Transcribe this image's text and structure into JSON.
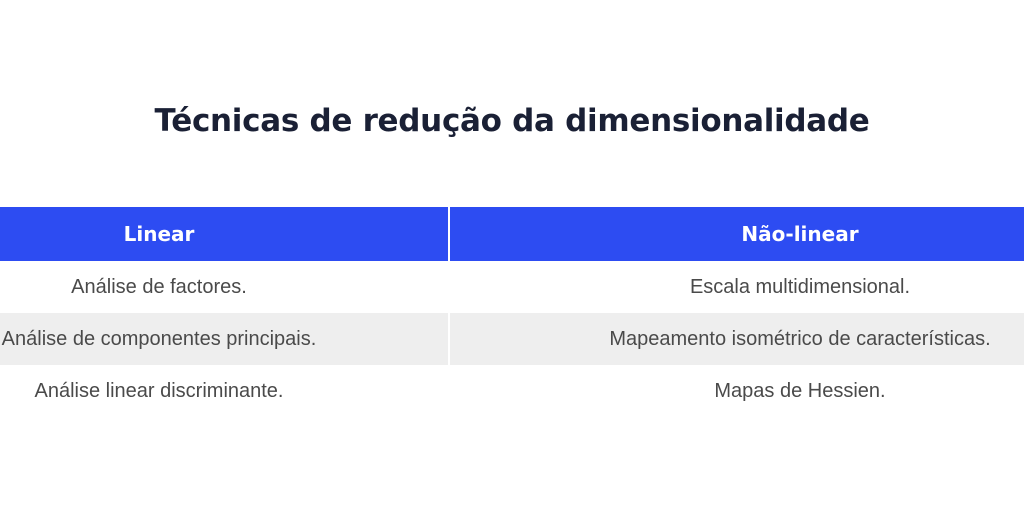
{
  "title": "Técnicas de redução da dimensionalidade",
  "table": {
    "headers": [
      "Linear",
      "Não-linear"
    ],
    "rows": [
      [
        "Análise de factores.",
        "Escala multidimensional."
      ],
      [
        "Análise de componentes principais.",
        "Mapeamento isométrico de características."
      ],
      [
        "Análise linear discriminante.",
        "Mapas de Hessien."
      ]
    ]
  },
  "colors": {
    "header_bg": "#2d4cf2",
    "title": "#1a2035",
    "cell_text": "#4a4a4a",
    "stripe": "#eeeeee"
  }
}
